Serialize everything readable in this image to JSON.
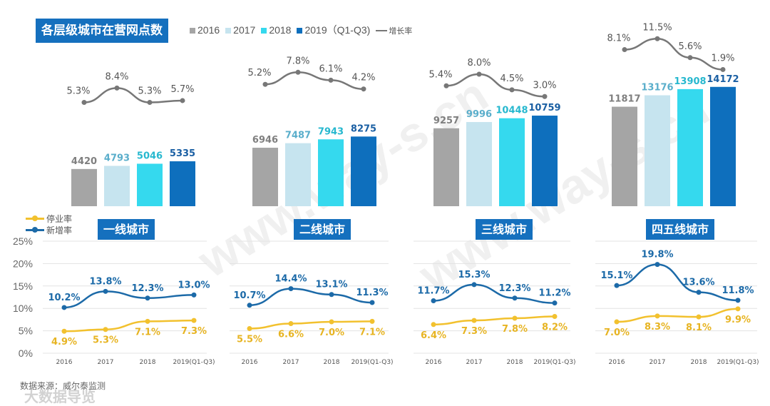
{
  "title": "各层级城市在营网点数",
  "legend": {
    "series": [
      "2016",
      "2017",
      "2018",
      "2019（Q1-Q3)"
    ],
    "growth": "增长率",
    "closure": "停业率",
    "new": "新增率"
  },
  "colors": {
    "2016": "#a5a5a5",
    "2017": "#c6e4ef",
    "2018": "#35d9ee",
    "2019": "#0e6fbd",
    "growth": "#777777",
    "closure": "#f2c12e",
    "new": "#1c6aa8",
    "title_bg": "#1570be"
  },
  "source": "数据来源：威尔泰监测",
  "watermark": "www.way-s.cn",
  "logo_watermark": "大数据导览",
  "chart_data": [
    {
      "type": "bar",
      "city": "一线城市",
      "categories": [
        "2016",
        "2017",
        "2018",
        "2019(Q1-Q3)"
      ],
      "outlets": [
        4420,
        4793,
        5046,
        5335
      ],
      "growth_rate": [
        5.3,
        8.4,
        5.3,
        5.7
      ],
      "growth_labels": [
        "5.3%",
        "8.4%",
        "5.3%",
        "5.7%"
      ],
      "closure_rate": [
        4.9,
        5.3,
        7.1,
        7.3
      ],
      "closure_labels": [
        "4.9%",
        "5.3%",
        "7.1%",
        "7.3%"
      ],
      "new_rate": [
        10.2,
        13.8,
        12.3,
        13.0
      ],
      "new_labels": [
        "10.2%",
        "13.8%",
        "12.3%",
        "13.0%"
      ]
    },
    {
      "type": "bar",
      "city": "二线城市",
      "categories": [
        "2016",
        "2017",
        "2018",
        "2019(Q1-Q3)"
      ],
      "outlets": [
        6946,
        7487,
        7943,
        8275
      ],
      "growth_rate": [
        5.2,
        7.8,
        6.1,
        4.2
      ],
      "growth_labels": [
        "5.2%",
        "7.8%",
        "6.1%",
        "4.2%"
      ],
      "closure_rate": [
        5.5,
        6.6,
        7.0,
        7.1
      ],
      "closure_labels": [
        "5.5%",
        "6.6%",
        "7.0%",
        "7.1%"
      ],
      "new_rate": [
        10.7,
        14.4,
        13.1,
        11.3
      ],
      "new_labels": [
        "10.7%",
        "14.4%",
        "13.1%",
        "11.3%"
      ]
    },
    {
      "type": "bar",
      "city": "三线城市",
      "categories": [
        "2016",
        "2017",
        "2018",
        "2019(Q1-Q3)"
      ],
      "outlets": [
        9257,
        9996,
        10448,
        10759
      ],
      "growth_rate": [
        5.4,
        8.0,
        4.5,
        3.0
      ],
      "growth_labels": [
        "5.4%",
        "8.0%",
        "4.5%",
        "3.0%"
      ],
      "closure_rate": [
        6.4,
        7.3,
        7.8,
        8.2
      ],
      "closure_labels": [
        "6.4%",
        "7.3%",
        "7.8%",
        "8.2%"
      ],
      "new_rate": [
        11.7,
        15.3,
        12.3,
        11.2
      ],
      "new_labels": [
        "11.7%",
        "15.3%",
        "12.3%",
        "11.2%"
      ]
    },
    {
      "type": "bar",
      "city": "四五线城市",
      "categories": [
        "2016",
        "2017",
        "2018",
        "2019(Q1-Q3)"
      ],
      "outlets": [
        11817,
        13176,
        13908,
        14172
      ],
      "growth_rate": [
        8.1,
        11.5,
        5.6,
        1.9
      ],
      "growth_labels": [
        "8.1%",
        "11.5%",
        "5.6%",
        "1.9%"
      ],
      "closure_rate": [
        7.0,
        8.3,
        8.1,
        9.9
      ],
      "closure_labels": [
        "7.0%",
        "8.3%",
        "8.1%",
        "9.9%"
      ],
      "new_rate": [
        15.1,
        19.8,
        13.6,
        11.8
      ],
      "new_labels": [
        "15.1%",
        "19.8%",
        "13.6%",
        "11.8%"
      ]
    }
  ],
  "rate_axis": {
    "ticks": [
      "0%",
      "5%",
      "10%",
      "15%",
      "20%",
      "25%"
    ],
    "ylim": [
      0,
      25
    ]
  }
}
